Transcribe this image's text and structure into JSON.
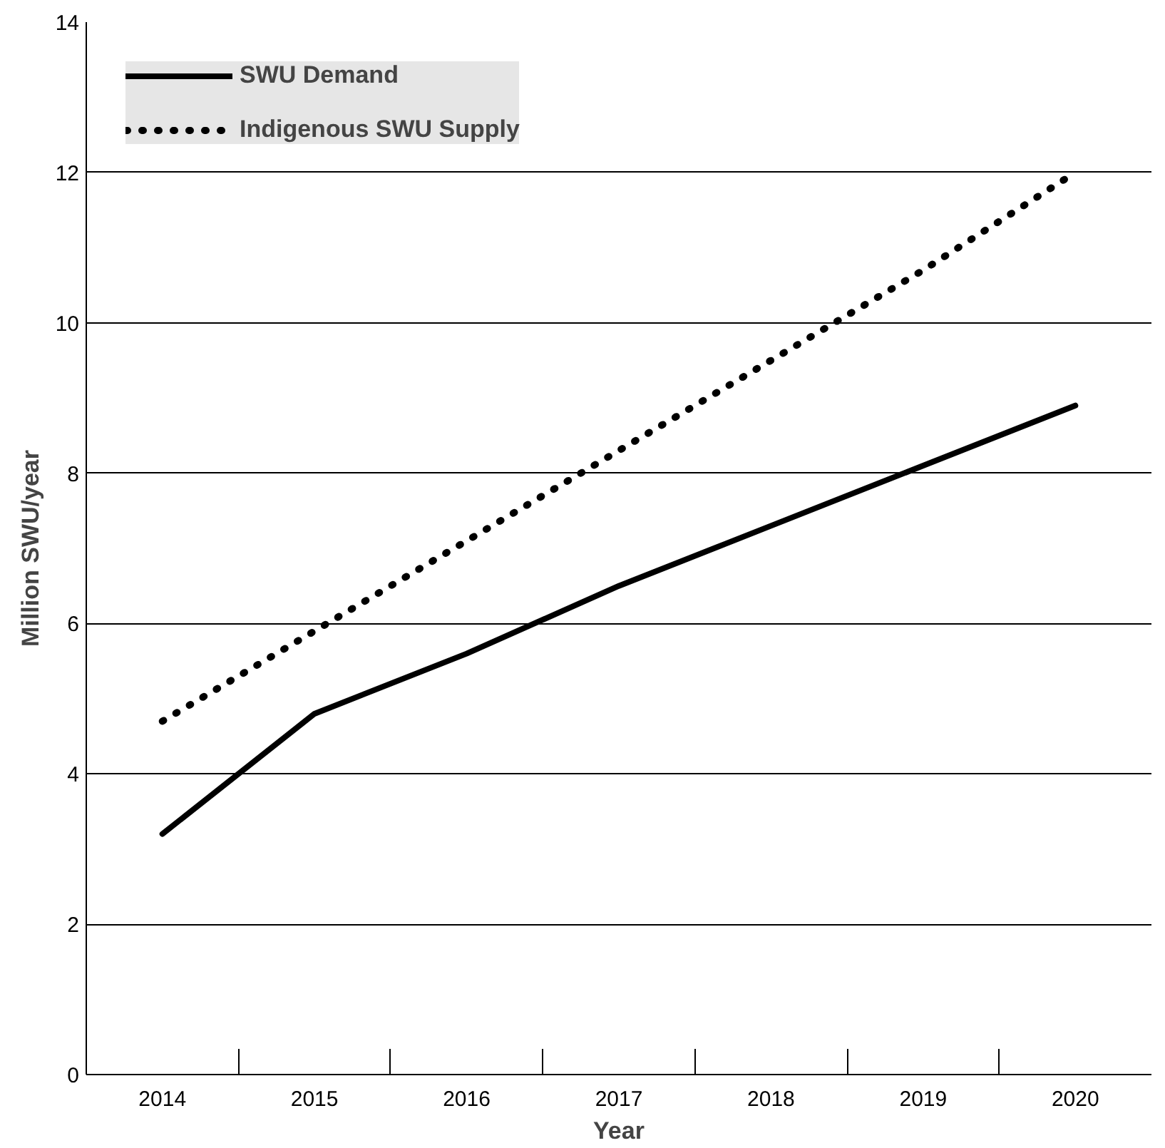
{
  "chart_data": {
    "type": "line",
    "xlabel": "Year",
    "ylabel": "Million SWU/year",
    "categories": [
      "2014",
      "2015",
      "2016",
      "2017",
      "2018",
      "2019",
      "2020"
    ],
    "series": [
      {
        "name": "SWU Demand",
        "color": "#000000",
        "line_style": "solid",
        "values": [
          3.2,
          4.8,
          5.6,
          6.5,
          7.3,
          8.1,
          8.9
        ]
      },
      {
        "name": "Indigenous SWU Supply",
        "color": "#000000",
        "line_style": "dotted",
        "values": [
          4.7,
          5.9,
          7.1,
          8.3,
          9.5,
          10.7,
          12.0
        ]
      }
    ],
    "ylim": [
      0,
      14
    ],
    "yticks": [
      0,
      2,
      4,
      6,
      8,
      10,
      12,
      14
    ],
    "grid": "y",
    "legend": "top left",
    "marker": "none"
  }
}
